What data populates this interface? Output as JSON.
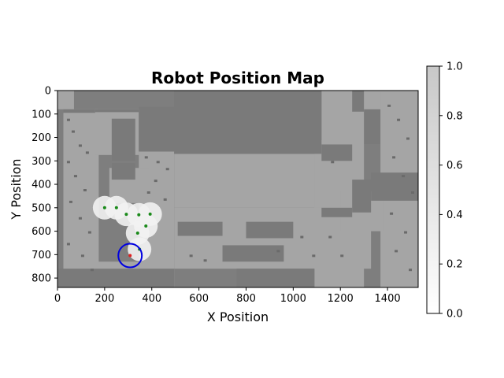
{
  "chart_data": {
    "type": "scatter",
    "title": "Robot Position Map",
    "xlabel": "X Position",
    "ylabel": "Y Position",
    "xlim": [
      0,
      1530
    ],
    "ylim": [
      840,
      0
    ],
    "x_ticks": [
      0,
      200,
      400,
      600,
      800,
      1000,
      1200,
      1400
    ],
    "y_ticks": [
      0,
      100,
      200,
      300,
      400,
      500,
      600,
      700,
      800
    ],
    "background": "grayscale occupancy map (floor plan)",
    "colormap": "gray_r",
    "colorbar": {
      "range": [
        0.0,
        1.0
      ],
      "ticks": [
        "0.0",
        "0.2",
        "0.4",
        "0.6",
        "0.8",
        "1.0"
      ]
    },
    "series": [
      {
        "kind": "waypoints",
        "color": "#1a8a1a",
        "points": [
          [
            200,
            500
          ],
          [
            250,
            500
          ],
          [
            292,
            528
          ],
          [
            345,
            530
          ],
          [
            393,
            527
          ],
          [
            375,
            578
          ],
          [
            340,
            608
          ],
          [
            348,
            677
          ]
        ]
      },
      {
        "kind": "robot-position",
        "color": "#e02020",
        "points": [
          [
            308,
            704
          ]
        ]
      },
      {
        "kind": "sensing-radius",
        "color": "#0000e0",
        "center": [
          308,
          704
        ],
        "radius": 50
      }
    ],
    "grid": false,
    "legend": "none"
  }
}
